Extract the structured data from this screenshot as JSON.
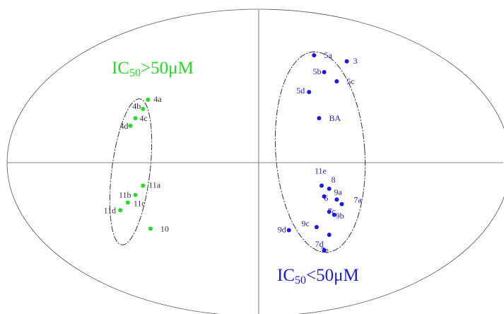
{
  "chart_data": {
    "type": "scatter",
    "title": "",
    "xlabel": "",
    "ylabel": "",
    "xlim": [
      -1,
      1
    ],
    "ylim": [
      -1,
      1
    ],
    "grid": false,
    "axes": "crosshair through origin",
    "annotations": [
      {
        "text_main": "IC",
        "text_sub": "50",
        "text_rest": ">50μM",
        "color": "#22dd22",
        "placement": "upper-left"
      },
      {
        "text_main": "IC",
        "text_sub": "50",
        "text_rest": "<50μM",
        "color": "#1a1ae6",
        "placement": "lower-right"
      }
    ],
    "series": [
      {
        "color": "#22dd22",
        "points": [
          {
            "label": "4a",
            "x": -0.44,
            "y": 0.41
          },
          {
            "label": "4b",
            "x": -0.46,
            "y": 0.35
          },
          {
            "label": "4c",
            "x": -0.49,
            "y": 0.29
          },
          {
            "label": "4d",
            "x": -0.51,
            "y": 0.24
          },
          {
            "label": "11a",
            "x": -0.46,
            "y": -0.15
          },
          {
            "label": "11b",
            "x": -0.49,
            "y": -0.21
          },
          {
            "label": "11c",
            "x": -0.52,
            "y": -0.26
          },
          {
            "label": "11d",
            "x": -0.55,
            "y": -0.31
          },
          {
            "label": "10",
            "x": -0.43,
            "y": -0.43
          }
        ]
      },
      {
        "color": "#1a1ae6",
        "points": [
          {
            "label": "5a",
            "x": 0.22,
            "y": 0.7
          },
          {
            "label": "3",
            "x": 0.35,
            "y": 0.66
          },
          {
            "label": "5b",
            "x": 0.26,
            "y": 0.59
          },
          {
            "label": "5c",
            "x": 0.31,
            "y": 0.53
          },
          {
            "label": "5d",
            "x": 0.2,
            "y": 0.46
          },
          {
            "label": "BA",
            "x": 0.24,
            "y": 0.29
          },
          {
            "label": "11e",
            "x": 0.25,
            "y": -0.15
          },
          {
            "label": "8",
            "x": 0.28,
            "y": -0.17
          },
          {
            "label": "9a",
            "x": 0.26,
            "y": -0.22
          },
          {
            "label": "6",
            "x": 0.31,
            "y": -0.24
          },
          {
            "label": "7a",
            "x": 0.33,
            "y": -0.27
          },
          {
            "label": "7c",
            "x": 0.28,
            "y": -0.32
          },
          {
            "label": "9b",
            "x": 0.3,
            "y": -0.34
          },
          {
            "label": "9c",
            "x": 0.23,
            "y": -0.42
          },
          {
            "label": "9d",
            "x": 0.12,
            "y": -0.44
          },
          {
            "label": "7d",
            "x": 0.28,
            "y": -0.47
          },
          {
            "label": "7e",
            "x": 0.26,
            "y": -0.57
          }
        ]
      }
    ]
  }
}
